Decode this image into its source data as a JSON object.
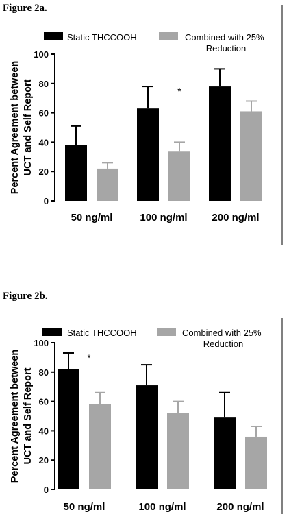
{
  "chart_data": [
    {
      "type": "bar",
      "figure_label": "Figure 2a.",
      "categories": [
        "50 ng/ml",
        "100 ng/ml",
        "200 ng/ml"
      ],
      "series": [
        {
          "name": "Static THCCOOH",
          "color": "#000000",
          "values": [
            38,
            63,
            78
          ],
          "error_upper": [
            51,
            78,
            90
          ]
        },
        {
          "name": "Combined with 25% Reduction",
          "color": "#a6a6a6",
          "values": [
            22,
            34,
            61
          ],
          "error_upper": [
            26,
            40,
            68
          ]
        }
      ],
      "legend_lines": [
        [
          "Static THCCOOH"
        ],
        [
          "Combined with 25%",
          "Reduction"
        ]
      ],
      "ylabel_lines": [
        "Percent Agreement between",
        "UCT and Self Report"
      ],
      "yticks": [
        "0",
        "20",
        "40",
        "60",
        "80",
        "100"
      ],
      "ylim": [
        0,
        100
      ],
      "annotations": [
        {
          "text": "*",
          "category": "100 ng/ml"
        }
      ]
    },
    {
      "type": "bar",
      "figure_label": "Figure 2b.",
      "categories": [
        "50 ng/ml",
        "100 ng/ml",
        "200 ng/ml"
      ],
      "series": [
        {
          "name": "Static THCCOOH",
          "color": "#000000",
          "values": [
            82,
            71,
            49
          ],
          "error_upper": [
            93,
            85,
            66
          ]
        },
        {
          "name": "Combined with 25% Reduction",
          "color": "#a6a6a6",
          "values": [
            58,
            52,
            36
          ],
          "error_upper": [
            66,
            60,
            43
          ]
        }
      ],
      "legend_lines": [
        [
          "Static THCCOOH"
        ],
        [
          "Combined with 25%",
          "Reduction"
        ]
      ],
      "ylabel_lines": [
        "Percent Agreement between",
        "UCT and Self Report"
      ],
      "yticks": [
        "0",
        "20",
        "40",
        "60",
        "80",
        "100"
      ],
      "ylim": [
        0,
        100
      ],
      "annotations": [
        {
          "text": "*",
          "category": "50 ng/ml"
        }
      ]
    }
  ]
}
